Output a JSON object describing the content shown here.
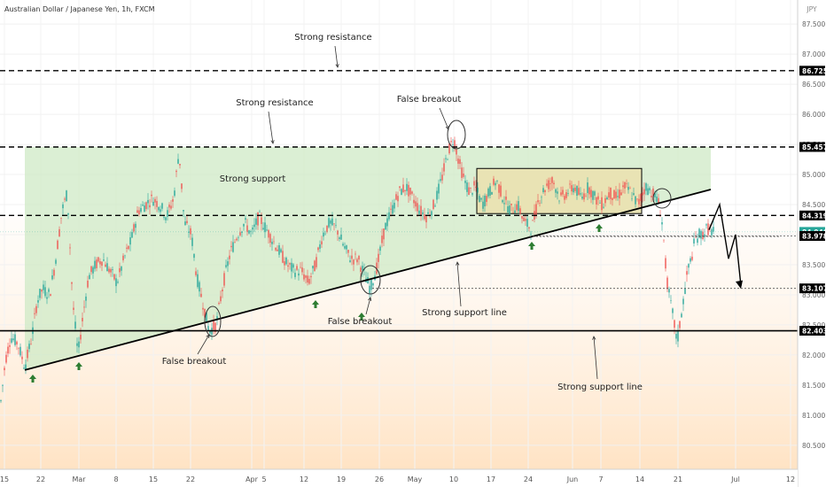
{
  "header": {
    "symbol": "Australian Dollar / Japanese Yen, 1h, FXCM",
    "currency": "JPY"
  },
  "colors": {
    "bull": "#26a69a",
    "bear": "#ef5350",
    "support_zone": "#cfe9c6",
    "range_box": "#e9e3b4",
    "arrow": "#2e7d32",
    "line": "#000000"
  },
  "chart_data": {
    "type": "candlestick",
    "title": "Australian Dollar / Japanese Yen, 1h, FXCM",
    "xlabel": "",
    "ylabel": "",
    "ylim": [
      80.1,
      87.9
    ],
    "x_ticks": [
      "15",
      "22",
      "Mar",
      "8",
      "15",
      "22",
      "Apr",
      "5",
      "12",
      "19",
      "26",
      "May",
      "10",
      "17",
      "24",
      "Jun",
      "7",
      "14",
      "21",
      "Jul",
      "12"
    ],
    "y_ticks": [
      80.5,
      81.0,
      81.5,
      82.0,
      82.5,
      83.0,
      83.5,
      84.0,
      84.5,
      85.0,
      85.5,
      86.0,
      86.5,
      87.0,
      87.5
    ],
    "price_path": [
      [
        0,
        81.1
      ],
      [
        6,
        81.9
      ],
      [
        12,
        82.3
      ],
      [
        20,
        82.2
      ],
      [
        28,
        81.8
      ],
      [
        36,
        82.3
      ],
      [
        42,
        82.9
      ],
      [
        48,
        83.1
      ],
      [
        56,
        83.0
      ],
      [
        62,
        83.5
      ],
      [
        70,
        84.4
      ],
      [
        76,
        84.7
      ],
      [
        82,
        82.9
      ],
      [
        88,
        82.0
      ],
      [
        94,
        82.7
      ],
      [
        100,
        83.3
      ],
      [
        108,
        83.5
      ],
      [
        116,
        83.6
      ],
      [
        124,
        83.4
      ],
      [
        132,
        83.2
      ],
      [
        140,
        83.6
      ],
      [
        148,
        83.9
      ],
      [
        156,
        84.4
      ],
      [
        164,
        84.5
      ],
      [
        172,
        84.6
      ],
      [
        180,
        84.5
      ],
      [
        188,
        84.3
      ],
      [
        196,
        84.6
      ],
      [
        202,
        85.4
      ],
      [
        208,
        84.2
      ],
      [
        216,
        84.0
      ],
      [
        222,
        83.3
      ],
      [
        230,
        82.8
      ],
      [
        236,
        82.4
      ],
      [
        244,
        82.5
      ],
      [
        252,
        83.2
      ],
      [
        260,
        83.7
      ],
      [
        268,
        84.0
      ],
      [
        276,
        84.2
      ],
      [
        284,
        84.0
      ],
      [
        292,
        84.3
      ],
      [
        300,
        84.1
      ],
      [
        308,
        83.9
      ],
      [
        316,
        83.7
      ],
      [
        324,
        83.5
      ],
      [
        332,
        83.4
      ],
      [
        340,
        83.4
      ],
      [
        348,
        83.2
      ],
      [
        356,
        83.5
      ],
      [
        364,
        84.0
      ],
      [
        372,
        84.2
      ],
      [
        380,
        84.1
      ],
      [
        388,
        83.8
      ],
      [
        396,
        83.6
      ],
      [
        404,
        83.6
      ],
      [
        412,
        83.3
      ],
      [
        418,
        83.1
      ],
      [
        426,
        83.5
      ],
      [
        434,
        84.1
      ],
      [
        442,
        84.4
      ],
      [
        450,
        84.7
      ],
      [
        458,
        84.8
      ],
      [
        466,
        84.6
      ],
      [
        474,
        84.4
      ],
      [
        482,
        84.3
      ],
      [
        490,
        84.5
      ],
      [
        498,
        84.9
      ],
      [
        506,
        85.4
      ],
      [
        512,
        85.6
      ],
      [
        518,
        85.2
      ],
      [
        524,
        84.9
      ],
      [
        530,
        84.7
      ],
      [
        536,
        84.8
      ],
      [
        544,
        84.5
      ],
      [
        552,
        84.7
      ],
      [
        560,
        84.9
      ],
      [
        568,
        84.6
      ],
      [
        576,
        84.4
      ],
      [
        584,
        84.5
      ],
      [
        592,
        84.2
      ],
      [
        600,
        84.1
      ],
      [
        608,
        84.6
      ],
      [
        616,
        84.8
      ],
      [
        624,
        84.9
      ],
      [
        632,
        84.6
      ],
      [
        640,
        84.7
      ],
      [
        648,
        84.8
      ],
      [
        656,
        84.6
      ],
      [
        664,
        84.8
      ],
      [
        672,
        84.6
      ],
      [
        680,
        84.5
      ],
      [
        688,
        84.7
      ],
      [
        696,
        84.6
      ],
      [
        704,
        84.8
      ],
      [
        712,
        84.7
      ],
      [
        720,
        84.5
      ],
      [
        728,
        84.8
      ],
      [
        736,
        84.7
      ],
      [
        744,
        84.5
      ],
      [
        748,
        84.1
      ],
      [
        752,
        83.3
      ],
      [
        756,
        82.9
      ],
      [
        760,
        82.6
      ],
      [
        764,
        82.2
      ],
      [
        768,
        82.6
      ],
      [
        772,
        83.0
      ],
      [
        776,
        83.4
      ],
      [
        780,
        83.6
      ],
      [
        784,
        83.9
      ],
      [
        788,
        84.0
      ],
      [
        792,
        84.0
      ],
      [
        798,
        84.1
      ],
      [
        804,
        84.05
      ]
    ],
    "levels": [
      {
        "price": 86.725,
        "label": "86.725",
        "style": "dashed"
      },
      {
        "price": 85.457,
        "label": "85.457",
        "style": "dashed"
      },
      {
        "price": 84.319,
        "label": "84.319",
        "style": "dashed"
      },
      {
        "price": 84.046,
        "label": "84.046",
        "style": "current"
      },
      {
        "price": 83.978,
        "label": "83.978",
        "style": "dotted"
      },
      {
        "price": 83.107,
        "label": "83.107",
        "style": "dotted"
      },
      {
        "price": 82.403,
        "label": "82.403",
        "style": "solid"
      }
    ],
    "annotations": [
      {
        "text": "Strong resistance",
        "id": "strong-resistance-top"
      },
      {
        "text": "Strong resistance",
        "id": "strong-resistance-mid"
      },
      {
        "text": "False breakout",
        "id": "false-breakout-may"
      },
      {
        "text": "Strong support",
        "id": "strong-support-zone"
      },
      {
        "text": "False breakout",
        "id": "false-breakout-apr"
      },
      {
        "text": "Strong support line",
        "id": "support-line-label-1"
      },
      {
        "text": "False breakout",
        "id": "false-breakout-mar"
      },
      {
        "text": "Strong support line",
        "id": "support-line-label-2"
      }
    ]
  }
}
